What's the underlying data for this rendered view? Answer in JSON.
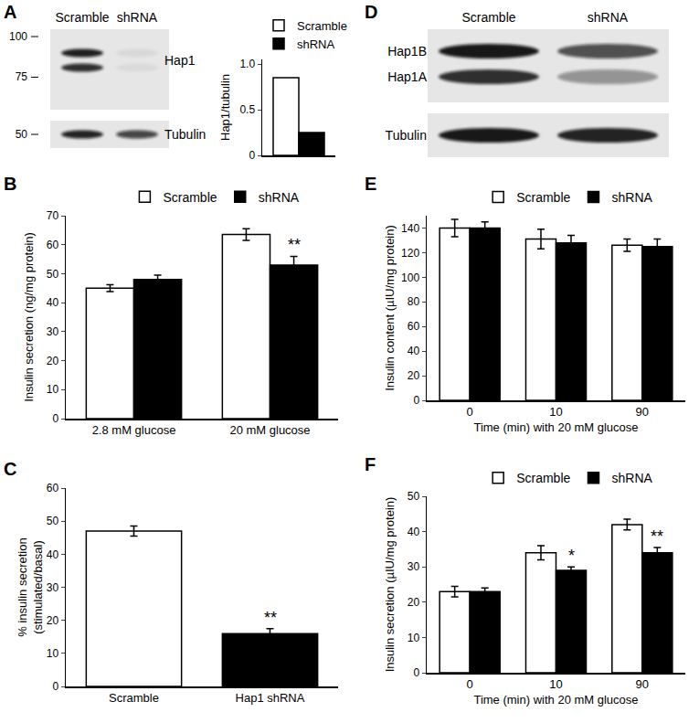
{
  "chart_data": [
    {
      "type": "blot",
      "panel": "A",
      "lanes": [
        "Scramble",
        "shRNA"
      ],
      "markers": [
        100,
        75,
        50
      ],
      "rows": [
        "Hap1",
        "Tubulin"
      ]
    },
    {
      "type": "bar",
      "categories": [
        null
      ],
      "series": [
        {
          "name": "Scramble",
          "color": "#ffffff",
          "values": [
            0.85
          ]
        },
        {
          "name": "shRNA",
          "color": "#000000",
          "values": [
            0.25
          ]
        }
      ],
      "y_label": "Hap1/tubulin",
      "ylim": [
        0,
        1.05
      ],
      "yticks": [
        0,
        0.5,
        {
          "value": 1,
          "label": "1.0"
        }
      ],
      "legend": "top",
      "tick_labels": "y"
    },
    {
      "type": "bar",
      "panel": "B",
      "categories": [
        "2.8 mM glucose",
        "20 mM glucose"
      ],
      "series": [
        {
          "name": "Scramble",
          "color": "#ffffff",
          "values": [
            45,
            63.5
          ],
          "errors": [
            1.2,
            2.0
          ]
        },
        {
          "name": "shRNA",
          "color": "#000000",
          "values": [
            48,
            53
          ],
          "errors": [
            1.5,
            3.0
          ]
        }
      ],
      "y_label": "Insulin secretion (ng/mg protein)",
      "ylim": [
        0,
        70
      ],
      "yticks": [
        0,
        10,
        20,
        30,
        40,
        50,
        60,
        70
      ],
      "legend": "top",
      "annotations": [
        {
          "text": "**",
          "category": "20 mM glucose",
          "series": "shRNA"
        }
      ]
    },
    {
      "type": "bar",
      "panel": "C",
      "categories": [
        "Scramble",
        "Hap1 shRNA"
      ],
      "values": [
        47,
        16
      ],
      "errors": [
        1.5,
        1.5
      ],
      "colors": [
        "#ffffff",
        "#000000"
      ],
      "y_label": "% insulin secretion (stimulated/basal)",
      "ylim": [
        0,
        60
      ],
      "yticks": [
        0,
        10,
        20,
        30,
        40,
        50,
        60
      ],
      "annotations": [
        {
          "text": "**",
          "category": "Hap1 shRNA"
        }
      ]
    },
    {
      "type": "blot",
      "panel": "D",
      "lanes": [
        "Scramble",
        "shRNA"
      ],
      "rows": [
        "Hap1B",
        "Hap1A",
        "Tubulin"
      ]
    },
    {
      "type": "bar",
      "panel": "E",
      "categories": [
        "0",
        "10",
        "90"
      ],
      "series": [
        {
          "name": "Scramble",
          "color": "#ffffff",
          "values": [
            140,
            131,
            126
          ],
          "errors": [
            7,
            8,
            5
          ]
        },
        {
          "name": "shRNA",
          "color": "#000000",
          "values": [
            140,
            128,
            125
          ],
          "errors": [
            5,
            6,
            6
          ]
        }
      ],
      "x_label": "Time (min) with 20 mM glucose",
      "y_label": "Insulin content (µIU/mg protein)",
      "ylim": [
        0,
        150
      ],
      "yticks": [
        0,
        20,
        40,
        60,
        80,
        100,
        120,
        140
      ],
      "legend": "top"
    },
    {
      "type": "bar",
      "panel": "F",
      "categories": [
        "0",
        "10",
        "90"
      ],
      "series": [
        {
          "name": "Scramble",
          "color": "#ffffff",
          "values": [
            23,
            34,
            42
          ],
          "errors": [
            1.5,
            2,
            1.5
          ]
        },
        {
          "name": "shRNA",
          "color": "#000000",
          "values": [
            23,
            29,
            34
          ],
          "errors": [
            1,
            1,
            1.5
          ]
        }
      ],
      "x_label": "Time (min) with 20 mM glucose",
      "y_label": "Insulin secretion (µIU/mg protein)",
      "ylim": [
        0,
        50
      ],
      "yticks": [
        0,
        10,
        20,
        30,
        40,
        50
      ],
      "legend": "top",
      "annotations": [
        {
          "text": "*",
          "category": "10",
          "series": "shRNA"
        },
        {
          "text": "**",
          "category": "90",
          "series": "shRNA"
        }
      ]
    }
  ]
}
